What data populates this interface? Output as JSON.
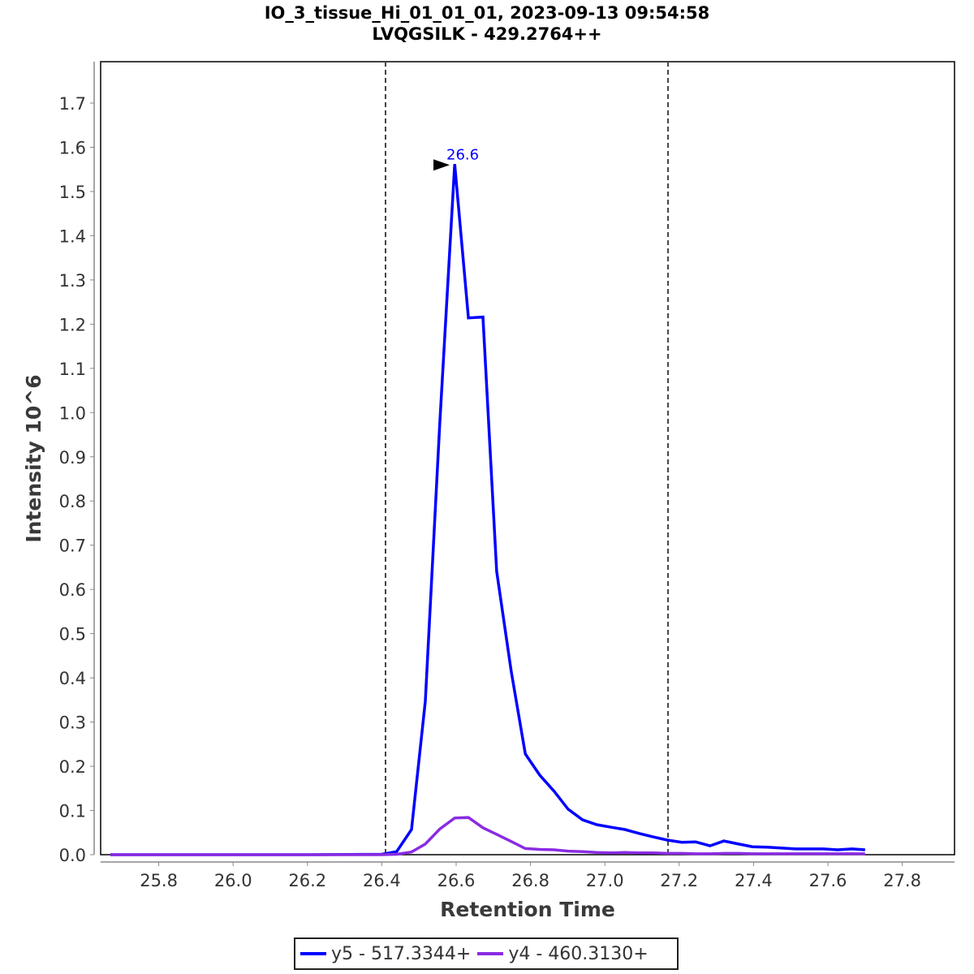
{
  "header": {
    "title_line1": "IO_3_tissue_Hi_01_01_01, 2023-09-13 09:54:58",
    "title_line2": "LVQGSILK - 429.2764++"
  },
  "axes": {
    "xlabel": "Retention Time",
    "ylabel": "Intensity 10^6",
    "xticks": [
      "25.8",
      "26.0",
      "26.2",
      "26.4",
      "26.6",
      "26.8",
      "27.0",
      "27.2",
      "27.4",
      "27.6",
      "27.8"
    ],
    "yticks": [
      "0.0",
      "0.1",
      "0.2",
      "0.3",
      "0.4",
      "0.5",
      "0.6",
      "0.7",
      "0.8",
      "0.9",
      "1.0",
      "1.1",
      "1.2",
      "1.3",
      "1.4",
      "1.5",
      "1.6",
      "1.7"
    ]
  },
  "annotation": {
    "peak_label": "26.6",
    "peak_label_color": "#0000ff"
  },
  "legend": {
    "items": [
      {
        "label": "y5 - 517.3344+",
        "color": "#0000ff"
      },
      {
        "label": "y4 - 460.3130+",
        "color": "#8a2be2"
      }
    ]
  },
  "chart_data": {
    "type": "line",
    "title": "IO_3_tissue_Hi_01_01_01, 2023-09-13 09:54:58 / LVQGSILK - 429.2764++",
    "xlabel": "Retention Time",
    "ylabel": "Intensity 10^6",
    "xlim": [
      25.64,
      27.94
    ],
    "ylim": [
      0.0,
      1.79
    ],
    "grid": false,
    "legend_position": "bottom",
    "integration_boundaries": [
      26.41,
      27.17
    ],
    "annotations": [
      {
        "text": "26.6",
        "x": 26.6,
        "y": 1.56
      }
    ],
    "series": [
      {
        "name": "y5 - 517.3344+",
        "color": "#0000ff",
        "x": [
          25.67,
          25.8,
          26.0,
          26.2,
          26.4,
          26.44,
          26.48,
          26.517,
          26.556,
          26.596,
          26.633,
          26.672,
          26.709,
          26.748,
          26.786,
          26.825,
          26.864,
          26.901,
          26.94,
          26.978,
          27.017,
          27.054,
          27.093,
          27.131,
          27.168,
          27.207,
          27.244,
          27.283,
          27.32,
          27.36,
          27.397,
          27.436,
          27.473,
          27.513,
          27.55,
          27.589,
          27.626,
          27.665,
          27.7
        ],
        "y": [
          0.0,
          0.0,
          0.0,
          0.0,
          0.001,
          0.007,
          0.057,
          0.347,
          0.975,
          1.562,
          1.214,
          1.216,
          0.641,
          0.415,
          0.228,
          0.18,
          0.143,
          0.103,
          0.079,
          0.068,
          0.062,
          0.057,
          0.048,
          0.04,
          0.033,
          0.028,
          0.029,
          0.02,
          0.031,
          0.024,
          0.018,
          0.017,
          0.015,
          0.013,
          0.013,
          0.013,
          0.011,
          0.013,
          0.011
        ]
      },
      {
        "name": "y4 - 460.3130+",
        "color": "#8a2be2",
        "x": [
          25.67,
          25.8,
          26.0,
          26.2,
          26.4,
          26.44,
          26.48,
          26.517,
          26.556,
          26.596,
          26.633,
          26.672,
          26.709,
          26.748,
          26.786,
          26.825,
          26.864,
          26.901,
          26.94,
          26.978,
          27.017,
          27.054,
          27.093,
          27.131,
          27.168,
          27.207,
          27.244,
          27.283,
          27.32,
          27.36,
          27.397,
          27.436,
          27.473,
          27.513,
          27.55,
          27.589,
          27.626,
          27.665,
          27.7
        ],
        "y": [
          0.0,
          0.0,
          0.0,
          0.0,
          0.0,
          0.001,
          0.006,
          0.024,
          0.058,
          0.083,
          0.084,
          0.061,
          0.046,
          0.03,
          0.014,
          0.012,
          0.011,
          0.008,
          0.007,
          0.005,
          0.004,
          0.005,
          0.004,
          0.004,
          0.003,
          0.003,
          0.002,
          0.002,
          0.003,
          0.003,
          0.002,
          0.002,
          0.002,
          0.002,
          0.002,
          0.002,
          0.002,
          0.002,
          0.002
        ]
      }
    ]
  }
}
